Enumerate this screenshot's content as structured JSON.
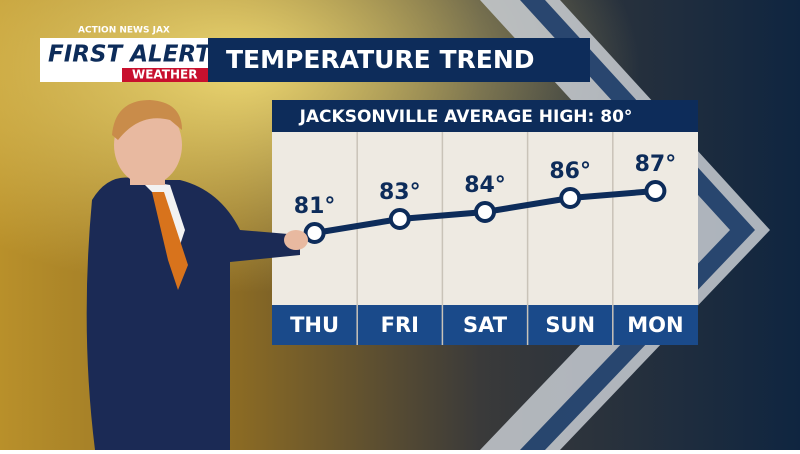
{
  "logo": {
    "station": "ACTION NEWS JAX",
    "brand": "FIRST ALERT",
    "product": "WEATHER"
  },
  "chart_data": {
    "type": "line",
    "title": "TEMPERATURE TREND",
    "subtitle": "JACKSONVILLE AVERAGE HIGH: 80°",
    "categories": [
      "THU",
      "FRI",
      "SAT",
      "SUN",
      "MON"
    ],
    "values": [
      81,
      83,
      84,
      86,
      87
    ],
    "value_labels": [
      "81°",
      "83°",
      "84°",
      "86°",
      "87°"
    ],
    "color": "#0d2c5a"
  }
}
